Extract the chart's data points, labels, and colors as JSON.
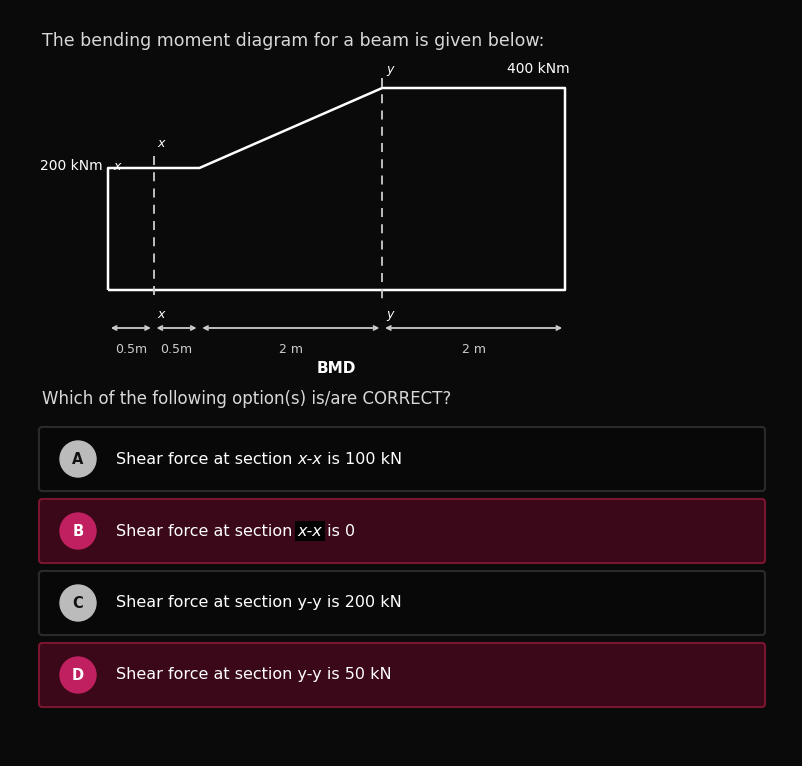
{
  "bg_color": "#0a0a0a",
  "title_text": "The bending moment diagram for a beam is given below:",
  "title_color": "#d8d8d8",
  "title_fontsize": 12.5,
  "diagram_label": "BMD",
  "label_400": "400 kNm",
  "label_200": "200 kNm",
  "question_text": "Which of the following option(s) is/are CORRECT?",
  "options": [
    {
      "letter": "A",
      "text_before": "Shear force at section ",
      "italic": "x-x",
      "text_after": " is 100 kN",
      "highlighted": false
    },
    {
      "letter": "B",
      "text_before": "Shear force at section ",
      "italic": "x-x",
      "text_after": " is 0",
      "highlighted": true
    },
    {
      "letter": "C",
      "text_before": "Shear force at section y-y is 200 kN",
      "italic": "",
      "text_after": "",
      "highlighted": false
    },
    {
      "letter": "D",
      "text_before": "Shear force at section y-y is 50 kN",
      "italic": "",
      "text_after": "",
      "highlighted": true
    }
  ],
  "option_bg_normal": "#080808",
  "option_bg_highlight": "#3a0818",
  "option_border_normal": "#2a2a2a",
  "option_border_highlight": "#7a1530",
  "circle_bg_normal": "#bbbbbb",
  "circle_bg_highlight": "#c02060",
  "circle_text_normal": "#111111",
  "circle_text_highlight": "#ffffff",
  "diagram_line_color": "#ffffff",
  "dashed_line_color": "#cccccc",
  "arrow_color": "#cccccc",
  "dim_text_color": "#cccccc"
}
